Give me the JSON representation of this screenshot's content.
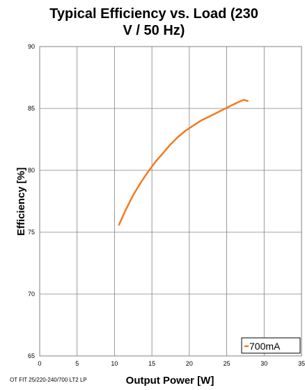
{
  "chart_data": {
    "type": "line",
    "title_line1": "Typical Efficiency vs. Load (230",
    "title_line2": "V / 50 Hz)",
    "xlabel": "Output Power [W]",
    "ylabel": "Efficiency [%]",
    "xlim": [
      0,
      35
    ],
    "ylim": [
      65,
      90
    ],
    "xticks": [
      0,
      5,
      10,
      15,
      20,
      25,
      30,
      35
    ],
    "yticks": [
      65,
      70,
      75,
      80,
      85,
      90
    ],
    "grid": true,
    "legend_position": "bottom-right",
    "product_note": "OT FIT 25/220-240/700 LT2 LP",
    "series": [
      {
        "name": "700mA",
        "color": "#F47A1F",
        "x": [
          10.6,
          11.5,
          12.5,
          13.5,
          14.5,
          15.5,
          16.5,
          17.5,
          18.5,
          19.5,
          20.5,
          21.5,
          22.5,
          23.5,
          24.5,
          25.5,
          26.5,
          27.3,
          27.8
        ],
        "y": [
          75.6,
          76.8,
          78.0,
          79.0,
          79.9,
          80.7,
          81.4,
          82.1,
          82.7,
          83.2,
          83.6,
          84.0,
          84.3,
          84.6,
          84.9,
          85.2,
          85.5,
          85.7,
          85.6
        ]
      }
    ]
  }
}
